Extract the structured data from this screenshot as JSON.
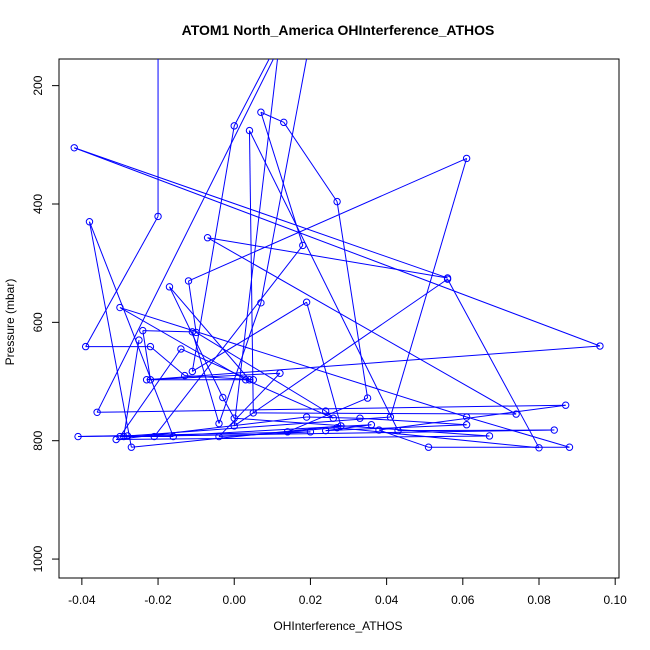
{
  "chart_data": {
    "type": "line",
    "title": "ATOM1 North_America OHInterference_ATHOS",
    "xlabel": "OHInterference_ATHOS",
    "ylabel": "Pressure (mbar)",
    "xlim": [
      -0.046,
      0.101
    ],
    "ylim": [
      1032,
      155
    ],
    "y_reversed": true,
    "x_ticks": [
      -0.04,
      -0.02,
      0.0,
      0.02,
      0.04,
      0.06,
      0.08,
      0.1
    ],
    "x_tick_labels": [
      "-0.04",
      "-0.02",
      "0.00",
      "0.02",
      "0.04",
      "0.06",
      "0.08",
      "0.10"
    ],
    "y_ticks": [
      200,
      400,
      600,
      800,
      1000
    ],
    "y_tick_labels": [
      "200",
      "400",
      "600",
      "800",
      "1000"
    ],
    "grid": false,
    "color": "#0000ff",
    "series": [
      {
        "points": [
          [
            -0.02,
            120
          ],
          [
            -0.02,
            421
          ],
          [
            -0.039,
            641
          ],
          [
            -0.022,
            641
          ],
          [
            -0.013,
            690
          ],
          [
            0.005,
            697
          ],
          [
            -0.022,
            697
          ],
          [
            -0.024,
            614
          ],
          [
            -0.011,
            616
          ],
          [
            -0.004,
            771
          ],
          [
            0.007,
            567
          ],
          [
            0.02,
            120
          ],
          [
            0.013,
            120
          ],
          [
            -0.036,
            752
          ],
          [
            0.087,
            740
          ],
          [
            0.038,
            782
          ],
          [
            0.051,
            811
          ],
          [
            0.088,
            811
          ],
          [
            0.061,
            760
          ],
          [
            -0.03,
            575
          ],
          [
            0.003,
            697
          ],
          [
            0.026,
            762
          ],
          [
            0.024,
            750
          ],
          [
            -0.01,
            617
          ],
          [
            -0.012,
            530
          ],
          [
            0.061,
            323
          ],
          [
            0.041,
            760
          ],
          [
            -0.028,
            792
          ],
          [
            -0.041,
            793
          ],
          [
            0.02,
            785
          ],
          [
            -0.004,
            793
          ],
          [
            0.012,
            686
          ],
          [
            -0.023,
            697
          ],
          [
            0.096,
            640
          ],
          [
            -0.042,
            305
          ],
          [
            0.056,
            525
          ],
          [
            -0.007,
            457
          ],
          [
            0.074,
            755
          ],
          [
            0.005,
            753
          ],
          [
            0.004,
            276
          ],
          [
            0.043,
            783
          ],
          [
            0.084,
            782
          ],
          [
            -0.03,
            793
          ],
          [
            -0.014,
            645
          ],
          [
            0.004,
            697
          ],
          [
            -0.017,
            540
          ],
          [
            -0.003,
            727
          ],
          [
            0.0,
            762
          ],
          [
            0.067,
            792
          ],
          [
            -0.031,
            798
          ],
          [
            0.019,
            760
          ],
          [
            0.033,
            762
          ],
          [
            0.061,
            773
          ],
          [
            0.024,
            783
          ],
          [
            0.036,
            773
          ],
          [
            -0.021,
            793
          ],
          [
            0.018,
            470
          ],
          [
            0.007,
            245
          ],
          [
            0.013,
            262
          ],
          [
            0.027,
            396
          ],
          [
            0.035,
            728
          ],
          [
            0.014,
            785
          ],
          [
            0.027,
            778
          ],
          [
            0.08,
            812
          ],
          [
            0.056,
            527
          ],
          [
            0.0,
            775
          ],
          [
            0.012,
            120
          ],
          [
            0.0,
            268
          ],
          [
            -0.011,
            683
          ],
          [
            0.019,
            566
          ],
          [
            0.028,
            775
          ],
          [
            -0.027,
            811
          ],
          [
            -0.038,
            430
          ],
          [
            -0.016,
            793
          ],
          [
            -0.029,
            793
          ],
          [
            -0.025,
            630
          ]
        ]
      }
    ]
  }
}
